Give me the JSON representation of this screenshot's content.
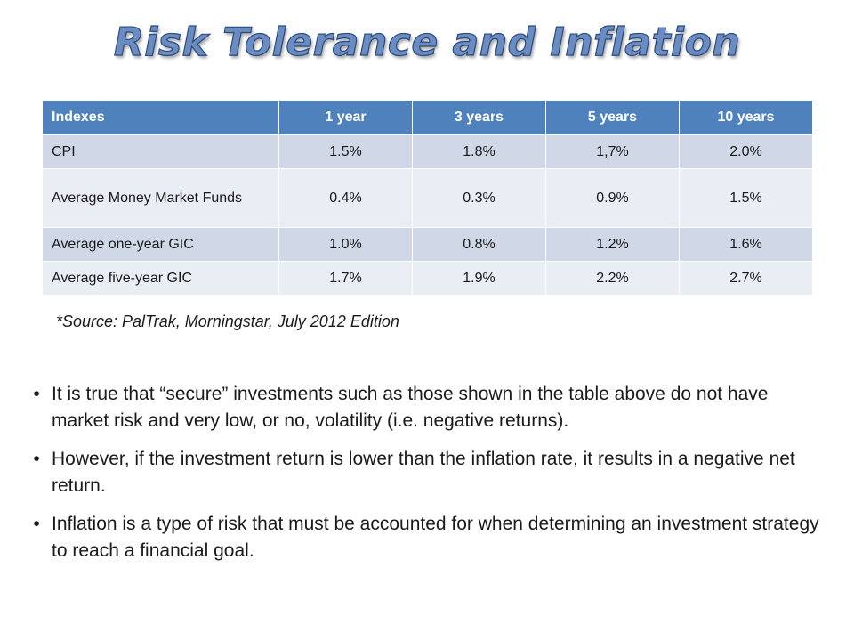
{
  "title": "Risk Tolerance and Inflation",
  "table": {
    "headers": [
      "Indexes",
      "1 year",
      "3 years",
      "5 years",
      "10 years"
    ],
    "rows": [
      {
        "label": "CPI",
        "values": [
          "1.5%",
          "1.8%",
          "1,7%",
          "2.0%"
        ]
      },
      {
        "label": "Average Money Market Funds",
        "values": [
          "0.4%",
          "0.3%",
          "0.9%",
          "1.5%"
        ]
      },
      {
        "label": "Average one-year GIC",
        "values": [
          "1.0%",
          "0.8%",
          "1.2%",
          "1.6%"
        ]
      },
      {
        "label": "Average five-year GIC",
        "values": [
          "1.7%",
          "1.9%",
          "2.2%",
          "2.7%"
        ]
      }
    ]
  },
  "source_note": "*Source: PalTrak, Morningstar, July 2012 Edition",
  "bullets": [
    "It is true that “secure” investments such as those shown in the table above do not have market risk and very low, or no, volatility (i.e. negative returns).",
    "However, if the investment return is lower than the inflation rate, it results in a negative net return.",
    "Inflation is a type of risk that must be accounted for when determining an investment strategy to reach a financial goal."
  ],
  "bullet_glyph": "•",
  "colors": {
    "title_fill": "#6a8cc0",
    "title_outline": "#2a4a80",
    "table_header": "#4f81bd",
    "table_row_dark": "#d0d8e8",
    "table_row_light": "#e9edf4"
  }
}
